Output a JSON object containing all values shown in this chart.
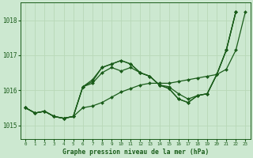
{
  "background_color": "#cce8d0",
  "grid_color": "#b8d8b8",
  "line_color": "#1a5c1a",
  "title": "Graphe pression niveau de la mer (hPa)",
  "ylim": [
    1014.6,
    1018.5
  ],
  "xlim": [
    -0.5,
    23.5
  ],
  "yticks": [
    1015,
    1016,
    1017,
    1018
  ],
  "xticks": [
    0,
    1,
    2,
    3,
    4,
    5,
    6,
    7,
    8,
    9,
    10,
    11,
    12,
    13,
    14,
    15,
    16,
    17,
    18,
    19,
    20,
    21,
    22,
    23
  ],
  "series": [
    [
      1015.5,
      1015.35,
      1015.4,
      1015.25,
      1015.2,
      1015.25,
      1015.5,
      1015.55,
      1015.65,
      1015.8,
      1015.95,
      1016.05,
      1016.15,
      1016.2,
      1016.2,
      1016.2,
      1016.25,
      1016.3,
      1016.35,
      1016.4,
      1016.45,
      1016.6,
      1017.15,
      1018.25
    ],
    [
      1015.5,
      1015.35,
      1015.4,
      1015.25,
      1015.2,
      1015.25,
      1016.1,
      1016.2,
      1016.5,
      1016.65,
      1016.55,
      1016.65,
      1016.5,
      1016.4,
      1016.15,
      1016.1,
      1015.9,
      1015.75,
      1015.85,
      1015.9,
      1016.45,
      1017.15,
      1018.25,
      null
    ],
    [
      1015.5,
      1015.35,
      1015.4,
      1015.25,
      1015.2,
      1015.25,
      1016.1,
      1016.25,
      1016.65,
      1016.75,
      1016.85,
      1016.75,
      1016.5,
      1016.4,
      1016.15,
      1016.05,
      1015.75,
      1015.65,
      1015.85,
      1015.9,
      1016.45,
      1017.15,
      1018.25,
      null
    ],
    [
      1015.5,
      1015.35,
      1015.4,
      1015.25,
      1015.2,
      1015.25,
      1016.1,
      1016.3,
      1016.65,
      1016.75,
      1016.85,
      1016.75,
      1016.5,
      1016.4,
      1016.15,
      1016.05,
      1015.75,
      1015.65,
      1015.85,
      1015.9,
      1016.45,
      1017.15,
      1018.25,
      null
    ]
  ]
}
